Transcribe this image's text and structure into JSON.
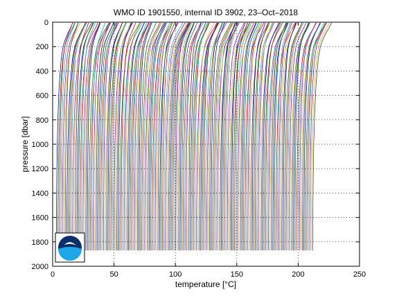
{
  "chart_data": {
    "type": "line",
    "title": "WMO ID 1901550, internal ID 3902, 23–Oct–2018",
    "xlabel": "temperature [°C]",
    "ylabel": "pressure [dbar]",
    "xlim": [
      0,
      250
    ],
    "ylim": [
      2000,
      0
    ],
    "y_reversed": true,
    "grid": true,
    "x_ticks": [
      "0",
      "50",
      "100",
      "150",
      "200",
      "250"
    ],
    "y_ticks": [
      "0",
      "200",
      "400",
      "600",
      "800",
      "1000",
      "1200",
      "1400",
      "1600",
      "1800",
      "2000"
    ],
    "x_tick_values": [
      0,
      50,
      100,
      150,
      200,
      250
    ],
    "y_tick_values": [
      0,
      200,
      400,
      600,
      800,
      1000,
      1200,
      1400,
      1600,
      1800,
      2000
    ],
    "profile_style": "waterfall of stacked temperature profiles, each offset by ~1.2 degC",
    "profile_count": 175,
    "profile_offset": 1.2,
    "max_pressure": 1870,
    "typical_profile": {
      "pressure": [
        5,
        50,
        100,
        150,
        200,
        300,
        400,
        500,
        600,
        700,
        800,
        1000,
        1200,
        1400,
        1600,
        1870
      ],
      "temperature": [
        16.5,
        14.5,
        12.0,
        10.0,
        8.5,
        7.0,
        6.2,
        5.5,
        5.0,
        4.6,
        4.3,
        3.8,
        3.5,
        3.3,
        3.1,
        3.0
      ]
    },
    "series_colors": [
      "#0000ff",
      "#008000",
      "#ff0000",
      "#00bfbf",
      "#bf00bf",
      "#bfbf00",
      "#404040"
    ],
    "logo": "noaa-logo"
  }
}
